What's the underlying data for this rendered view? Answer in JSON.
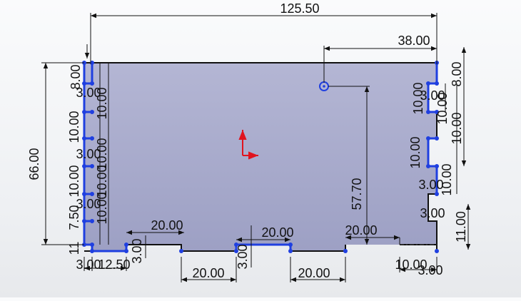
{
  "sketch": {
    "dimensions": {
      "overall_width": "125.50",
      "hole_x_offset": "38.00",
      "overall_height": "66.00",
      "hole_y_offset": "57.70",
      "left_top_8": "8.00",
      "left_3_a": "3.00",
      "left_10_a": "10.00",
      "left_10_b": "10.00",
      "left_3_b": "3.00",
      "left_10_c": "10.00",
      "left_10_d": "10.00",
      "left_10_e": "10.00",
      "left_3_c": "3.00",
      "left_10_f": "10.00",
      "left_7_50": "7.50",
      "left_11": "11",
      "left_3_d": "3.00",
      "right_top_8": "8.00",
      "right_3_a": "3.00",
      "right_10_a": "10.00",
      "right_10_b": "10.00",
      "right_10_c": "10.00",
      "right_10_d": "10.00",
      "right_10_e": "10.00",
      "right_3_b": "3.00",
      "right_3_c": "3.00",
      "right_11": "11.00",
      "bottom_20_a": "20.00",
      "bottom_20_b": "20.00",
      "bottom_20_c": "20.00",
      "bottom_20_d": "20.00",
      "bottom_20_e": "20.00",
      "bottom_3_a": "3.00",
      "bottom_3_b": "3.00",
      "bottom_3_c": "3.00",
      "bottom_12_50": "12.50",
      "bottom_10": "10.00",
      "bottom_3_d": "3.00"
    },
    "colors": {
      "face": "#a7aaca",
      "selected_edge": "#1f3fe0",
      "origin_axis": "#e0141e"
    }
  }
}
